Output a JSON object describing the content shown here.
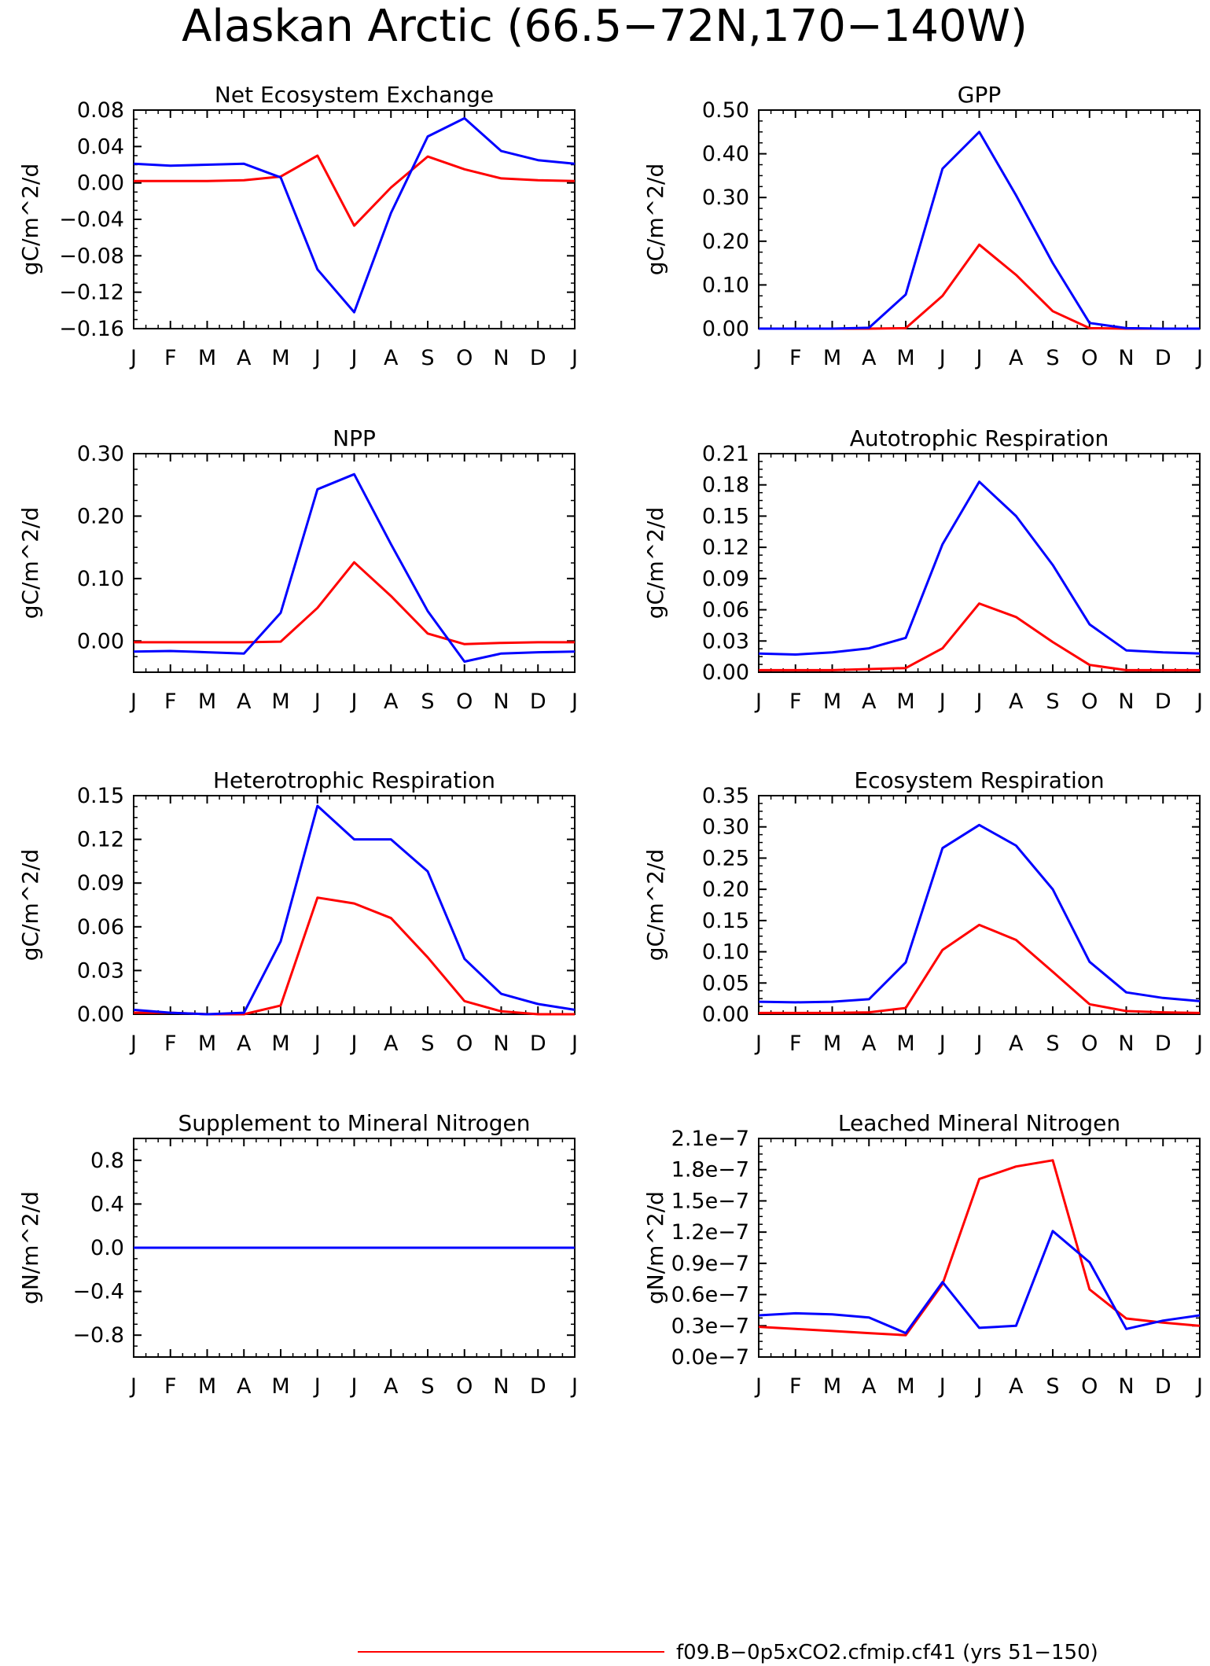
{
  "page": {
    "title": "Alaskan Arctic (66.5−72N,170−140W)"
  },
  "legend": {
    "entries": [
      {
        "label": "f09.B−0p5xCO2.cfmip.cf41 (yrs 51−150)",
        "color": "#ff0000"
      }
    ]
  },
  "colors": {
    "red": "#ff0000",
    "blue": "#0000ff"
  },
  "chart_data": [
    {
      "type": "line",
      "title": "Net Ecosystem Exchange",
      "ylabel": "gC/m^2/d",
      "xlabel": "",
      "categories": [
        "J",
        "F",
        "M",
        "A",
        "M",
        "J",
        "J",
        "A",
        "S",
        "O",
        "N",
        "D",
        "J"
      ],
      "ylim": [
        -0.16,
        0.08
      ],
      "yticks": [
        0.08,
        0.04,
        0.0,
        -0.04,
        -0.08,
        -0.12,
        -0.16
      ],
      "ytick_labels": [
        "0.08",
        "0.04",
        "0.00",
        "−0.04",
        "−0.08",
        "−0.12",
        "−0.16"
      ],
      "series": [
        {
          "color": "red",
          "values": [
            0.002,
            0.002,
            0.002,
            0.003,
            0.007,
            0.03,
            -0.047,
            -0.005,
            0.029,
            0.015,
            0.005,
            0.003,
            0.002
          ]
        },
        {
          "color": "blue",
          "values": [
            0.021,
            0.019,
            0.02,
            0.021,
            0.006,
            -0.095,
            -0.142,
            -0.033,
            0.051,
            0.071,
            0.035,
            0.025,
            0.021
          ]
        }
      ]
    },
    {
      "type": "line",
      "title": "GPP",
      "ylabel": "gC/m^2/d",
      "xlabel": "",
      "categories": [
        "J",
        "F",
        "M",
        "A",
        "M",
        "J",
        "J",
        "A",
        "S",
        "O",
        "N",
        "D",
        "J"
      ],
      "ylim": [
        0,
        0.5
      ],
      "yticks": [
        0.5,
        0.4,
        0.3,
        0.2,
        0.1,
        0.0
      ],
      "ytick_labels": [
        "0.50",
        "0.40",
        "0.30",
        "0.20",
        "0.10",
        "0.00"
      ],
      "series": [
        {
          "color": "red",
          "values": [
            0.0,
            0.0,
            0.0,
            0.0,
            0.001,
            0.075,
            0.192,
            0.123,
            0.04,
            0.001,
            0.0,
            0.0,
            0.0
          ]
        },
        {
          "color": "blue",
          "values": [
            0.0,
            0.0,
            0.0,
            0.002,
            0.078,
            0.366,
            0.45,
            0.305,
            0.15,
            0.013,
            0.001,
            0.0,
            0.0
          ]
        }
      ]
    },
    {
      "type": "line",
      "title": "NPP",
      "ylabel": "gC/m^2/d",
      "xlabel": "",
      "categories": [
        "J",
        "F",
        "M",
        "A",
        "M",
        "J",
        "J",
        "A",
        "S",
        "O",
        "N",
        "D",
        "J"
      ],
      "ylim": [
        -0.05,
        0.3
      ],
      "yticks": [
        0.3,
        0.2,
        0.1,
        0.0
      ],
      "ytick_labels": [
        "0.30",
        "0.20",
        "0.10",
        "0.00"
      ],
      "series": [
        {
          "color": "red",
          "values": [
            -0.002,
            -0.002,
            -0.002,
            -0.002,
            -0.001,
            0.053,
            0.126,
            0.072,
            0.012,
            -0.005,
            -0.003,
            -0.002,
            -0.002
          ]
        },
        {
          "color": "blue",
          "values": [
            -0.017,
            -0.016,
            -0.018,
            -0.02,
            0.045,
            0.243,
            0.267,
            0.155,
            0.048,
            -0.033,
            -0.02,
            -0.018,
            -0.017
          ]
        }
      ]
    },
    {
      "type": "line",
      "title": "Autotrophic Respiration",
      "ylabel": "gC/m^2/d",
      "xlabel": "",
      "categories": [
        "J",
        "F",
        "M",
        "A",
        "M",
        "J",
        "J",
        "A",
        "S",
        "O",
        "N",
        "D",
        "J"
      ],
      "ylim": [
        0,
        0.21
      ],
      "yticks": [
        0.21,
        0.18,
        0.15,
        0.12,
        0.09,
        0.06,
        0.03,
        0.0
      ],
      "ytick_labels": [
        "0.21",
        "0.18",
        "0.15",
        "0.12",
        "0.09",
        "0.06",
        "0.03",
        "0.00"
      ],
      "series": [
        {
          "color": "red",
          "values": [
            0.002,
            0.002,
            0.002,
            0.003,
            0.004,
            0.023,
            0.066,
            0.053,
            0.029,
            0.007,
            0.002,
            0.002,
            0.002
          ]
        },
        {
          "color": "blue",
          "values": [
            0.018,
            0.017,
            0.019,
            0.023,
            0.033,
            0.123,
            0.183,
            0.15,
            0.103,
            0.046,
            0.021,
            0.019,
            0.018
          ]
        }
      ]
    },
    {
      "type": "line",
      "title": "Heterotrophic Respiration",
      "ylabel": "gC/m^2/d",
      "xlabel": "",
      "categories": [
        "J",
        "F",
        "M",
        "A",
        "M",
        "J",
        "J",
        "A",
        "S",
        "O",
        "N",
        "D",
        "J"
      ],
      "ylim": [
        0,
        0.15
      ],
      "yticks": [
        0.15,
        0.12,
        0.09,
        0.06,
        0.03,
        0.0
      ],
      "ytick_labels": [
        "0.15",
        "0.12",
        "0.09",
        "0.06",
        "0.03",
        "0.00"
      ],
      "series": [
        {
          "color": "red",
          "values": [
            0.001,
            0.001,
            0.0,
            0.0,
            0.006,
            0.08,
            0.076,
            0.066,
            0.039,
            0.009,
            0.002,
            0.0,
            0.0
          ]
        },
        {
          "color": "blue",
          "values": [
            0.003,
            0.001,
            0.0,
            0.001,
            0.05,
            0.143,
            0.12,
            0.12,
            0.098,
            0.038,
            0.014,
            0.007,
            0.003
          ]
        }
      ]
    },
    {
      "type": "line",
      "title": "Ecosystem Respiration",
      "ylabel": "gC/m^2/d",
      "xlabel": "",
      "categories": [
        "J",
        "F",
        "M",
        "A",
        "M",
        "J",
        "J",
        "A",
        "S",
        "O",
        "N",
        "D",
        "J"
      ],
      "ylim": [
        0,
        0.35
      ],
      "yticks": [
        0.35,
        0.3,
        0.25,
        0.2,
        0.15,
        0.1,
        0.05,
        0.0
      ],
      "ytick_labels": [
        "0.35",
        "0.30",
        "0.25",
        "0.20",
        "0.15",
        "0.10",
        "0.05",
        "0.00"
      ],
      "series": [
        {
          "color": "red",
          "values": [
            0.002,
            0.002,
            0.002,
            0.003,
            0.01,
            0.103,
            0.143,
            0.119,
            0.068,
            0.016,
            0.005,
            0.003,
            0.002
          ]
        },
        {
          "color": "blue",
          "values": [
            0.02,
            0.019,
            0.02,
            0.024,
            0.083,
            0.266,
            0.303,
            0.27,
            0.2,
            0.084,
            0.035,
            0.026,
            0.021
          ]
        }
      ]
    },
    {
      "type": "line",
      "title": "Supplement to Mineral Nitrogen",
      "ylabel": "gN/m^2/d",
      "xlabel": "",
      "categories": [
        "J",
        "F",
        "M",
        "A",
        "M",
        "J",
        "J",
        "A",
        "S",
        "O",
        "N",
        "D",
        "J"
      ],
      "ylim": [
        -1.0,
        1.0
      ],
      "yticks": [
        0.8,
        0.4,
        0.0,
        -0.4,
        -0.8
      ],
      "ytick_labels": [
        "0.8",
        "0.4",
        "0.0",
        "−0.4",
        "−0.8"
      ],
      "series": [
        {
          "color": "red",
          "values": [
            0,
            0,
            0,
            0,
            0,
            0,
            0,
            0,
            0,
            0,
            0,
            0,
            0
          ]
        },
        {
          "color": "blue",
          "values": [
            0,
            0,
            0,
            0,
            0,
            0,
            0,
            0,
            0,
            0,
            0,
            0,
            0
          ]
        }
      ]
    },
    {
      "type": "line",
      "title": "Leached Mineral Nitrogen",
      "ylabel": "gN/m^2/d",
      "xlabel": "",
      "categories": [
        "J",
        "F",
        "M",
        "A",
        "M",
        "J",
        "J",
        "A",
        "S",
        "O",
        "N",
        "D",
        "J"
      ],
      "ylim": [
        0,
        2.1e-07
      ],
      "yticks": [
        2.1e-07,
        1.8e-07,
        1.5e-07,
        1.2e-07,
        9e-08,
        6e-08,
        3e-08,
        0.0
      ],
      "ytick_labels": [
        "2.1e−7",
        "1.8e−7",
        "1.5e−7",
        "1.2e−7",
        "0.9e−7",
        "0.6e−7",
        "0.3e−7",
        "0.0e−7"
      ],
      "series": [
        {
          "color": "red",
          "values": [
            2.9e-08,
            2.7e-08,
            2.5e-08,
            2.3e-08,
            2.1e-08,
            7e-08,
            1.71e-07,
            1.83e-07,
            1.89e-07,
            6.5e-08,
            3.7e-08,
            3.3e-08,
            3e-08
          ]
        },
        {
          "color": "blue",
          "values": [
            4e-08,
            4.2e-08,
            4.1e-08,
            3.8e-08,
            2.3e-08,
            7.2e-08,
            2.8e-08,
            3e-08,
            1.21e-07,
            9.1e-08,
            2.7e-08,
            3.5e-08,
            4e-08
          ]
        }
      ]
    }
  ]
}
